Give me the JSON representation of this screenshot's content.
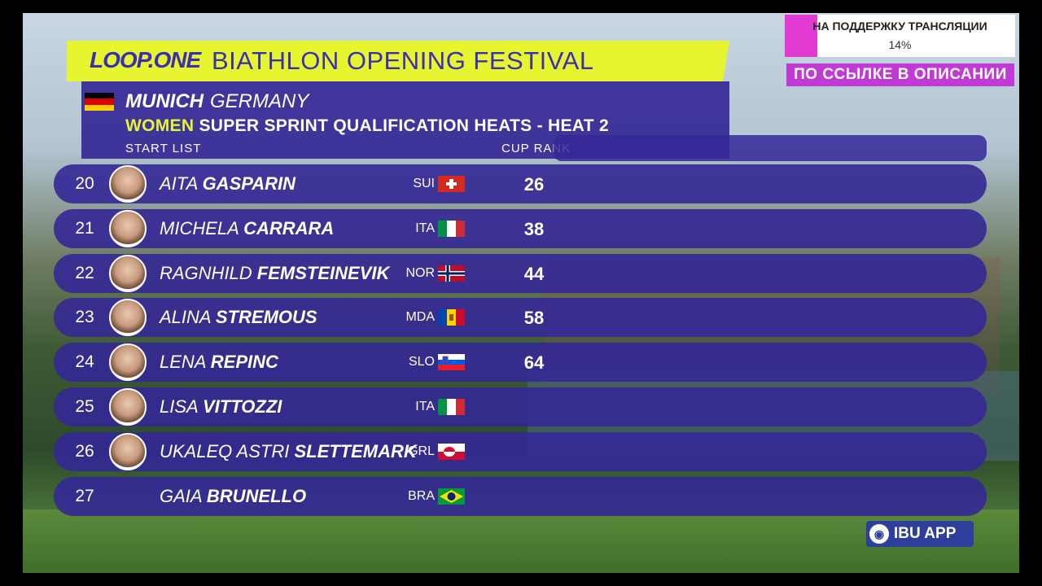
{
  "header": {
    "logo": "LOOP.ONE",
    "title": "BIATHLON OPENING FESTIVAL",
    "city": "MUNICH",
    "country": "GERMANY",
    "event_gender": "WOMEN",
    "event_name": "SUPER  SPRINT  QUALIFICATION  HEATS  -  HEAT  2",
    "start_list_label": "START  LIST",
    "cup_rank_label": "CUP  RANK"
  },
  "athletes": [
    {
      "bib": "20",
      "first": "AITA",
      "last": "GASPARIN",
      "nat": "SUI",
      "rank": "26",
      "photo": true
    },
    {
      "bib": "21",
      "first": "MICHELA",
      "last": "CARRARA",
      "nat": "ITA",
      "rank": "38",
      "photo": true
    },
    {
      "bib": "22",
      "first": "RAGNHILD",
      "last": "FEMSTEINEVIK",
      "nat": "NOR",
      "rank": "44",
      "photo": true
    },
    {
      "bib": "23",
      "first": "ALINA",
      "last": "STREMOUS",
      "nat": "MDA",
      "rank": "58",
      "photo": true
    },
    {
      "bib": "24",
      "first": "LENA",
      "last": "REPINC",
      "nat": "SLO",
      "rank": "64",
      "photo": true
    },
    {
      "bib": "25",
      "first": "LISA",
      "last": "VITTOZZI",
      "nat": "ITA",
      "rank": "",
      "photo": true
    },
    {
      "bib": "26",
      "first": "UKALEQ  ASTRI",
      "last": "SLETTEMARK",
      "nat": "GRL",
      "rank": "",
      "photo": true
    },
    {
      "bib": "27",
      "first": "GAIA",
      "last": "BRUNELLO",
      "nat": "BRA",
      "rank": "",
      "photo": false
    }
  ],
  "promo": {
    "title": "НА ПОДДЕРЖКУ ТРАНСЛЯЦИИ",
    "percent": "14%",
    "link": "ПО ССЫЛКЕ В ОПИСАНИИ"
  },
  "app_badge": {
    "label": "IBU APP",
    "icon": "ibu-globe-icon"
  },
  "colors": {
    "accent_yellow": "#e7f531",
    "panel_purple": "#3428a0",
    "promo_pink": "#e13bd2"
  }
}
